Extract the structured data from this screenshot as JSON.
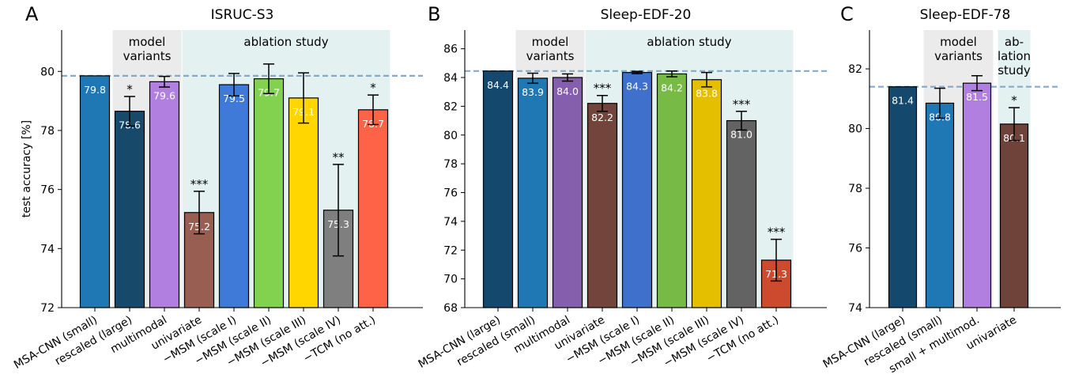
{
  "chart_data": [
    {
      "type": "bar",
      "panel_letter": "A",
      "title": "ISRUC-S3",
      "ylabel": "test accuracy [%]",
      "ylim": [
        72,
        81.4
      ],
      "yticks": [
        72,
        74,
        76,
        78,
        80
      ],
      "reference_value": 79.85,
      "regions": [
        {
          "label_lines": [
            "model",
            "variants"
          ],
          "from": 1,
          "to": 2,
          "color": "#ebebeb"
        },
        {
          "label_lines": [
            "ablation study"
          ],
          "from": 3,
          "to": 8,
          "color": "#e3f1f1"
        }
      ],
      "bars": [
        {
          "category": "MSA-CNN (small)",
          "value": 79.85,
          "label": "79.8",
          "err": 0,
          "sig": "",
          "color": "#1f77b4"
        },
        {
          "category": "rescaled (large)",
          "value": 78.65,
          "label": "78.6",
          "err": 0.5,
          "sig": "*",
          "color": "#17496b"
        },
        {
          "category": "multimodal",
          "value": 79.65,
          "label": "79.6",
          "err": 0.18,
          "sig": "",
          "color": "#b07fe0"
        },
        {
          "category": "univariate",
          "value": 75.22,
          "label": "75.2",
          "err": 0.72,
          "sig": "***",
          "color": "#985e51"
        },
        {
          "category": "−MSM (scale I)",
          "value": 79.55,
          "label": "79.5",
          "err": 0.38,
          "sig": "",
          "color": "#3f7ad8"
        },
        {
          "category": "−MSM (scale II)",
          "value": 79.75,
          "label": "79.7",
          "err": 0.5,
          "sig": "",
          "color": "#82d250"
        },
        {
          "category": "−MSM (scale III)",
          "value": 79.1,
          "label": "79.1",
          "err": 0.85,
          "sig": "",
          "color": "#ffd600"
        },
        {
          "category": "−MSM (scale IV)",
          "value": 75.3,
          "label": "75.3",
          "err": 1.55,
          "sig": "**",
          "color": "#7f7f7f"
        },
        {
          "category": "−TCM (no att.)",
          "value": 78.7,
          "label": "78.7",
          "err": 0.5,
          "sig": "*",
          "color": "#ff6347"
        }
      ]
    },
    {
      "type": "bar",
      "panel_letter": "B",
      "title": "Sleep-EDF-20",
      "ylabel": "",
      "ylim": [
        68,
        87.3
      ],
      "yticks": [
        68,
        70,
        72,
        74,
        76,
        78,
        80,
        82,
        84,
        86
      ],
      "reference_value": 84.45,
      "regions": [
        {
          "label_lines": [
            "model",
            "variants"
          ],
          "from": 1,
          "to": 2,
          "color": "#ebebeb"
        },
        {
          "label_lines": [
            "ablation study"
          ],
          "from": 3,
          "to": 8,
          "color": "#e3f1f1"
        }
      ],
      "bars": [
        {
          "category": "MSA-CNN (large)",
          "value": 84.45,
          "label": "84.4",
          "err": 0,
          "sig": "",
          "color": "#15486d"
        },
        {
          "category": "rescaled (small)",
          "value": 83.95,
          "label": "83.9",
          "err": 0.35,
          "sig": "",
          "color": "#1f77b4"
        },
        {
          "category": "multimodal",
          "value": 84.0,
          "label": "84.0",
          "err": 0.25,
          "sig": "",
          "color": "#855ead"
        },
        {
          "category": "univariate",
          "value": 82.2,
          "label": "82.2",
          "err": 0.55,
          "sig": "***",
          "color": "#72443b"
        },
        {
          "category": "−MSM (scale I)",
          "value": 84.35,
          "label": "84.3",
          "err": 0.08,
          "sig": "",
          "color": "#3f70cc"
        },
        {
          "category": "−MSM (scale II)",
          "value": 84.25,
          "label": "84.2",
          "err": 0.2,
          "sig": "",
          "color": "#78ba46"
        },
        {
          "category": "−MSM (scale III)",
          "value": 83.85,
          "label": "83.8",
          "err": 0.5,
          "sig": "",
          "color": "#e4bf00"
        },
        {
          "category": "−MSM (scale IV)",
          "value": 81.0,
          "label": "81.0",
          "err": 0.65,
          "sig": "***",
          "color": "#636363"
        },
        {
          "category": "−TCM (no att.)",
          "value": 71.3,
          "label": "71.3",
          "err": 1.45,
          "sig": "***",
          "color": "#cc4a2e"
        }
      ]
    },
    {
      "type": "bar",
      "panel_letter": "C",
      "title": "Sleep-EDF-78",
      "ylabel": "",
      "ylim": [
        74,
        83.3
      ],
      "yticks": [
        74,
        76,
        78,
        80,
        82
      ],
      "reference_value": 81.4,
      "regions": [
        {
          "label_lines": [
            "model",
            "variants"
          ],
          "from": 1,
          "to": 2,
          "color": "#ebebeb"
        },
        {
          "label_lines": [
            "ab-",
            "lation",
            "study"
          ],
          "from": 3,
          "to": 3,
          "color": "#e3f1f1"
        }
      ],
      "bars": [
        {
          "category": "MSA-CNN (large)",
          "value": 81.4,
          "label": "81.4",
          "err": 0,
          "sig": "",
          "color": "#15486d"
        },
        {
          "category": "rescaled (small)",
          "value": 80.85,
          "label": "80.8",
          "err": 0.5,
          "sig": "",
          "color": "#1f77b4"
        },
        {
          "category": "small + multimod.",
          "value": 81.52,
          "label": "81.5",
          "err": 0.25,
          "sig": "",
          "color": "#b07fe0"
        },
        {
          "category": "univariate",
          "value": 80.15,
          "label": "80.1",
          "err": 0.55,
          "sig": "*",
          "color": "#6f4339"
        }
      ]
    }
  ]
}
